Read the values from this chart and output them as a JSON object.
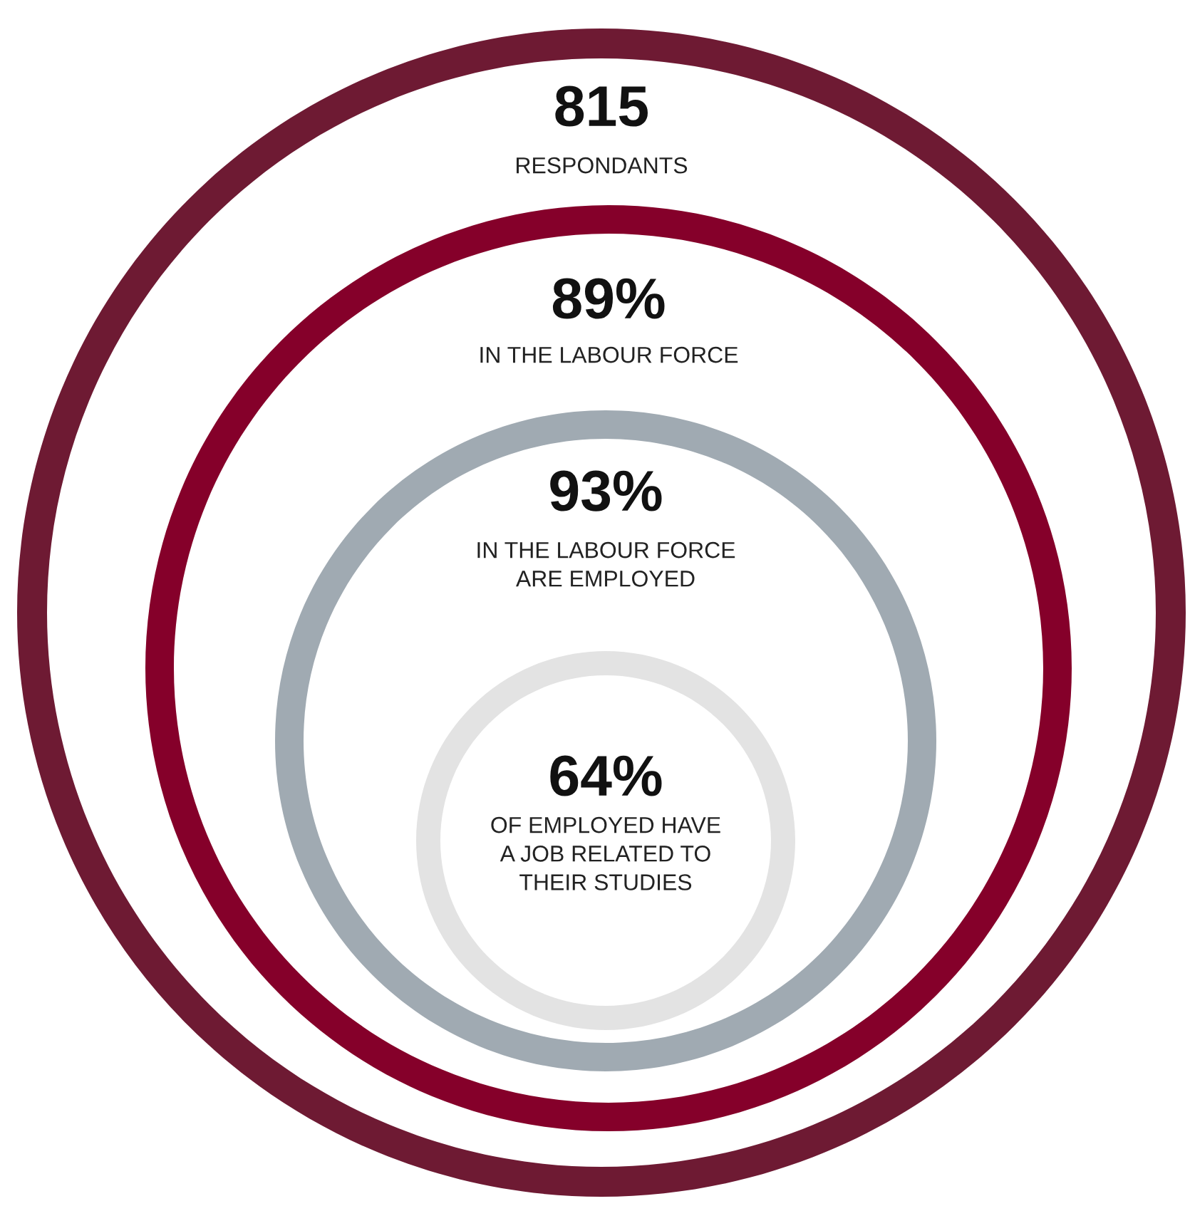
{
  "chart_data": {
    "type": "other",
    "categories": [
      "RESPONDANTS",
      "IN THE LABOUR FORCE",
      "IN THE LABOUR FORCE\nARE EMPLOYED",
      "OF EMPLOYED HAVE\nA JOB RELATED TO\nTHEIR STUDIES"
    ],
    "values": [
      815,
      89,
      93,
      64
    ],
    "value_labels": [
      "815",
      "89%",
      "93%",
      "64%"
    ],
    "colors": [
      "#6e1a33",
      "#85002a",
      "#a0aab2",
      "#e3e3e3"
    ]
  }
}
